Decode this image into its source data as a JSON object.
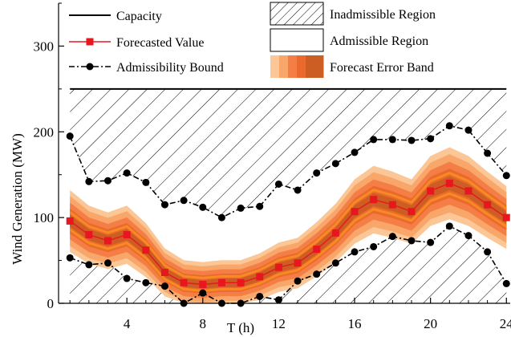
{
  "chart_data": {
    "type": "area",
    "xlabel": "T (h)",
    "ylabel": "Wind Generation (MW)",
    "xlim": [
      0.4,
      24.2
    ],
    "ylim": [
      0,
      350
    ],
    "x_ticks": [
      4,
      8,
      12,
      16,
      20,
      24
    ],
    "y_ticks": [
      0,
      100,
      200,
      300
    ],
    "x_tick_labels": [
      "4",
      "8",
      "12",
      "16",
      "20",
      "24"
    ],
    "y_tick_labels": [
      "0",
      "100",
      "200",
      "300"
    ],
    "x": [
      1,
      2,
      3,
      4,
      5,
      6,
      7,
      8,
      9,
      10,
      11,
      12,
      13,
      14,
      15,
      16,
      17,
      18,
      19,
      20,
      21,
      22,
      23,
      24
    ],
    "capacity": 250,
    "series": [
      {
        "name": "Forecasted Value",
        "values": [
          96,
          80,
          73,
          80,
          62,
          36,
          24,
          22,
          24,
          24,
          31,
          42,
          47,
          63,
          82,
          107,
          121,
          115,
          107,
          131,
          140,
          131,
          115,
          100
        ]
      },
      {
        "name": "Admissibility Bound",
        "values": [
          195,
          142,
          143,
          152,
          141,
          115,
          120,
          112,
          100,
          111,
          113,
          139,
          132,
          152,
          163,
          176,
          191,
          191,
          190,
          192,
          207,
          202,
          175,
          149
        ]
      },
      {
        "name": "Admissibility Bound",
        "values": [
          53,
          45,
          47,
          29,
          24,
          20,
          0,
          12,
          0,
          0,
          8,
          4,
          26,
          34,
          47,
          60,
          66,
          78,
          73,
          71,
          90,
          79,
          60,
          23
        ]
      }
    ],
    "forecast_error_band": {
      "half_widths": [
        42,
        34,
        25,
        17,
        8
      ],
      "colors": [
        "#fbc797",
        "#f8a66a",
        "#f47e45",
        "#ea6a2e",
        "#cc5d23"
      ]
    },
    "legend": {
      "placement": "top",
      "items": [
        {
          "label": "Capacity",
          "symbol": "solid-line"
        },
        {
          "label": "Forecasted Value",
          "symbol": "red-square-line"
        },
        {
          "label": "Admissibility Bound",
          "symbol": "dashdot-black-circle"
        },
        {
          "label": "Inadmissible Region",
          "symbol": "hatched-box"
        },
        {
          "label": "Admissible Region",
          "symbol": "empty-box"
        },
        {
          "label": "Forecast Error Band",
          "symbol": "orange-gradient-box"
        }
      ]
    },
    "colors": {
      "capacity": "#000000",
      "forecast": "#e8161e",
      "bound": "#000000",
      "hatch": "#000000",
      "band_peak": "#ffa21a"
    },
    "grid": false
  }
}
